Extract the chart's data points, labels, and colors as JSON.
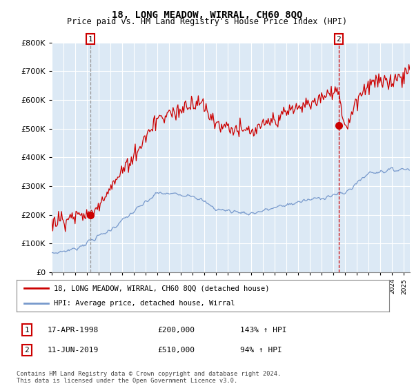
{
  "title": "18, LONG MEADOW, WIRRAL, CH60 8QQ",
  "subtitle": "Price paid vs. HM Land Registry's House Price Index (HPI)",
  "ylim": [
    0,
    800000
  ],
  "xlim_start": 1995.0,
  "xlim_end": 2025.5,
  "legend_line1": "18, LONG MEADOW, WIRRAL, CH60 8QQ (detached house)",
  "legend_line2": "HPI: Average price, detached house, Wirral",
  "annotation1_label": "1",
  "annotation1_date": 1998.29,
  "annotation1_price": 200000,
  "annotation1_text": "17-APR-1998",
  "annotation1_value_text": "£200,000",
  "annotation1_hpi_text": "143% ↑ HPI",
  "annotation2_label": "2",
  "annotation2_date": 2019.44,
  "annotation2_price": 510000,
  "annotation2_text": "11-JUN-2019",
  "annotation2_value_text": "£510,000",
  "annotation2_hpi_text": "94% ↑ HPI",
  "footer": "Contains HM Land Registry data © Crown copyright and database right 2024.\nThis data is licensed under the Open Government Licence v3.0.",
  "red_color": "#cc0000",
  "blue_color": "#7799cc",
  "vline1_color": "#999999",
  "vline2_color": "#cc0000",
  "grid_color": "#ffffff",
  "plot_bg": "#dce9f5",
  "box_color": "#cc0000",
  "background_color": "#ffffff",
  "title_fontsize": 10,
  "subtitle_fontsize": 8.5
}
